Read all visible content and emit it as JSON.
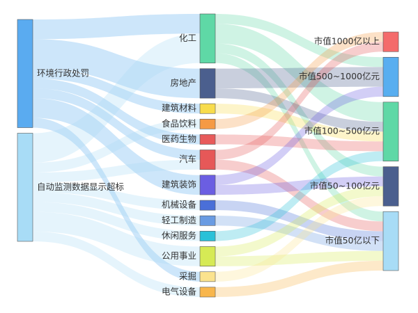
{
  "chart_data": {
    "type": "sankey",
    "nodes": [
      {
        "name": "环境行政处罚",
        "color": "#5aabf0"
      },
      {
        "name": "自动监测数据显示超标",
        "color": "#a8dcf6"
      },
      {
        "name": "化工",
        "color": "#5fd8a6"
      },
      {
        "name": "房地产",
        "color": "#4b5f8e"
      },
      {
        "name": "建筑材料",
        "color": "#f8dc4c"
      },
      {
        "name": "食品饮料",
        "color": "#f59a45"
      },
      {
        "name": "医药生物",
        "color": "#e85a5a"
      },
      {
        "name": "汽车",
        "color": "#e65858"
      },
      {
        "name": "建筑装饰",
        "color": "#6b5ee2"
      },
      {
        "name": "机械设备",
        "color": "#4a6fd8"
      },
      {
        "name": "轻工制造",
        "color": "#6a9be2"
      },
      {
        "name": "休闲服务",
        "color": "#29c1d8"
      },
      {
        "name": "公用事业",
        "color": "#d6ea55"
      },
      {
        "name": "采掘",
        "color": "#fbe38e"
      },
      {
        "name": "电气设备",
        "color": "#f8b64c"
      },
      {
        "name": "市值1000亿以上",
        "color": "#f46b6b"
      },
      {
        "name": "市值500~1000亿元",
        "color": "#58aef0"
      },
      {
        "name": "市值100~500亿元",
        "color": "#5fd8a6"
      },
      {
        "name": "市值50~100亿元",
        "color": "#4b5f8e"
      },
      {
        "name": "市值50亿以下",
        "color": "#a8dcf6"
      }
    ],
    "links": [
      {
        "source": 0,
        "target": 2,
        "value": 2
      },
      {
        "source": 0,
        "target": 3,
        "value": 3
      },
      {
        "source": 0,
        "target": 4,
        "value": 1
      },
      {
        "source": 0,
        "target": 6,
        "value": 1
      },
      {
        "source": 0,
        "target": 7,
        "value": 1
      },
      {
        "source": 0,
        "target": 8,
        "value": 2
      },
      {
        "source": 0,
        "target": 13,
        "value": 1
      },
      {
        "source": 1,
        "target": 2,
        "value": 3
      },
      {
        "source": 1,
        "target": 5,
        "value": 1
      },
      {
        "source": 1,
        "target": 7,
        "value": 1
      },
      {
        "source": 1,
        "target": 9,
        "value": 1
      },
      {
        "source": 1,
        "target": 10,
        "value": 1
      },
      {
        "source": 1,
        "target": 11,
        "value": 1
      },
      {
        "source": 1,
        "target": 12,
        "value": 2
      },
      {
        "source": 1,
        "target": 14,
        "value": 1
      },
      {
        "source": 2,
        "target": 16,
        "value": 1
      },
      {
        "source": 2,
        "target": 17,
        "value": 2
      },
      {
        "source": 2,
        "target": 18,
        "value": 1
      },
      {
        "source": 2,
        "target": 19,
        "value": 1
      },
      {
        "source": 3,
        "target": 16,
        "value": 2
      },
      {
        "source": 3,
        "target": 17,
        "value": 1
      },
      {
        "source": 4,
        "target": 17,
        "value": 1
      },
      {
        "source": 5,
        "target": 15,
        "value": 1
      },
      {
        "source": 6,
        "target": 17,
        "value": 1
      },
      {
        "source": 7,
        "target": 15,
        "value": 1
      },
      {
        "source": 7,
        "target": 19,
        "value": 1
      },
      {
        "source": 8,
        "target": 16,
        "value": 1
      },
      {
        "source": 8,
        "target": 18,
        "value": 1
      },
      {
        "source": 9,
        "target": 19,
        "value": 1
      },
      {
        "source": 10,
        "target": 19,
        "value": 1
      },
      {
        "source": 11,
        "target": 17,
        "value": 1
      },
      {
        "source": 12,
        "target": 18,
        "value": 1
      },
      {
        "source": 12,
        "target": 19,
        "value": 1
      },
      {
        "source": 13,
        "target": 18,
        "value": 1
      },
      {
        "source": 14,
        "target": 19,
        "value": 1
      }
    ]
  }
}
